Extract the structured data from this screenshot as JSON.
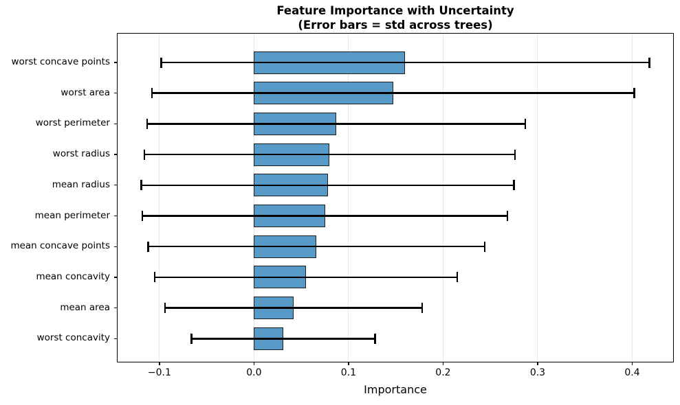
{
  "title": {
    "line1": "Feature Importance with Uncertainty",
    "line2": "(Error bars = std across trees)"
  },
  "chart_data": {
    "type": "bar",
    "orientation": "horizontal",
    "title": "Feature Importance with Uncertainty\n(Error bars = std across trees)",
    "xlabel": "Importance",
    "ylabel": "",
    "categories": [
      "worst concave points",
      "worst area",
      "worst perimeter",
      "worst radius",
      "mean radius",
      "mean perimeter",
      "mean concave points",
      "mean concavity",
      "mean area",
      "worst concavity"
    ],
    "values": [
      0.16,
      0.147,
      0.087,
      0.08,
      0.078,
      0.075,
      0.066,
      0.055,
      0.042,
      0.031
    ],
    "errors_std": [
      0.258,
      0.255,
      0.2,
      0.196,
      0.197,
      0.193,
      0.178,
      0.16,
      0.136,
      0.097
    ],
    "error_low": [
      -0.098,
      -0.108,
      -0.113,
      -0.116,
      -0.119,
      -0.118,
      -0.112,
      -0.105,
      -0.094,
      -0.066
    ],
    "error_high": [
      0.418,
      0.402,
      0.287,
      0.276,
      0.275,
      0.268,
      0.244,
      0.215,
      0.178,
      0.128
    ],
    "xlim": [
      -0.145,
      0.444
    ],
    "x_ticks": [
      -0.1,
      0.0,
      0.1,
      0.2,
      0.3,
      0.4
    ],
    "x_tick_labels": [
      "−0.1",
      "0.0",
      "0.1",
      "0.2",
      "0.3",
      "0.4"
    ],
    "grid": "vertical-only",
    "legend": "none",
    "bar_color": "#5799C7",
    "bar_edge_color": "#1c1c1c",
    "error_color": "#000000",
    "grid_color": "#e7e7e7"
  }
}
